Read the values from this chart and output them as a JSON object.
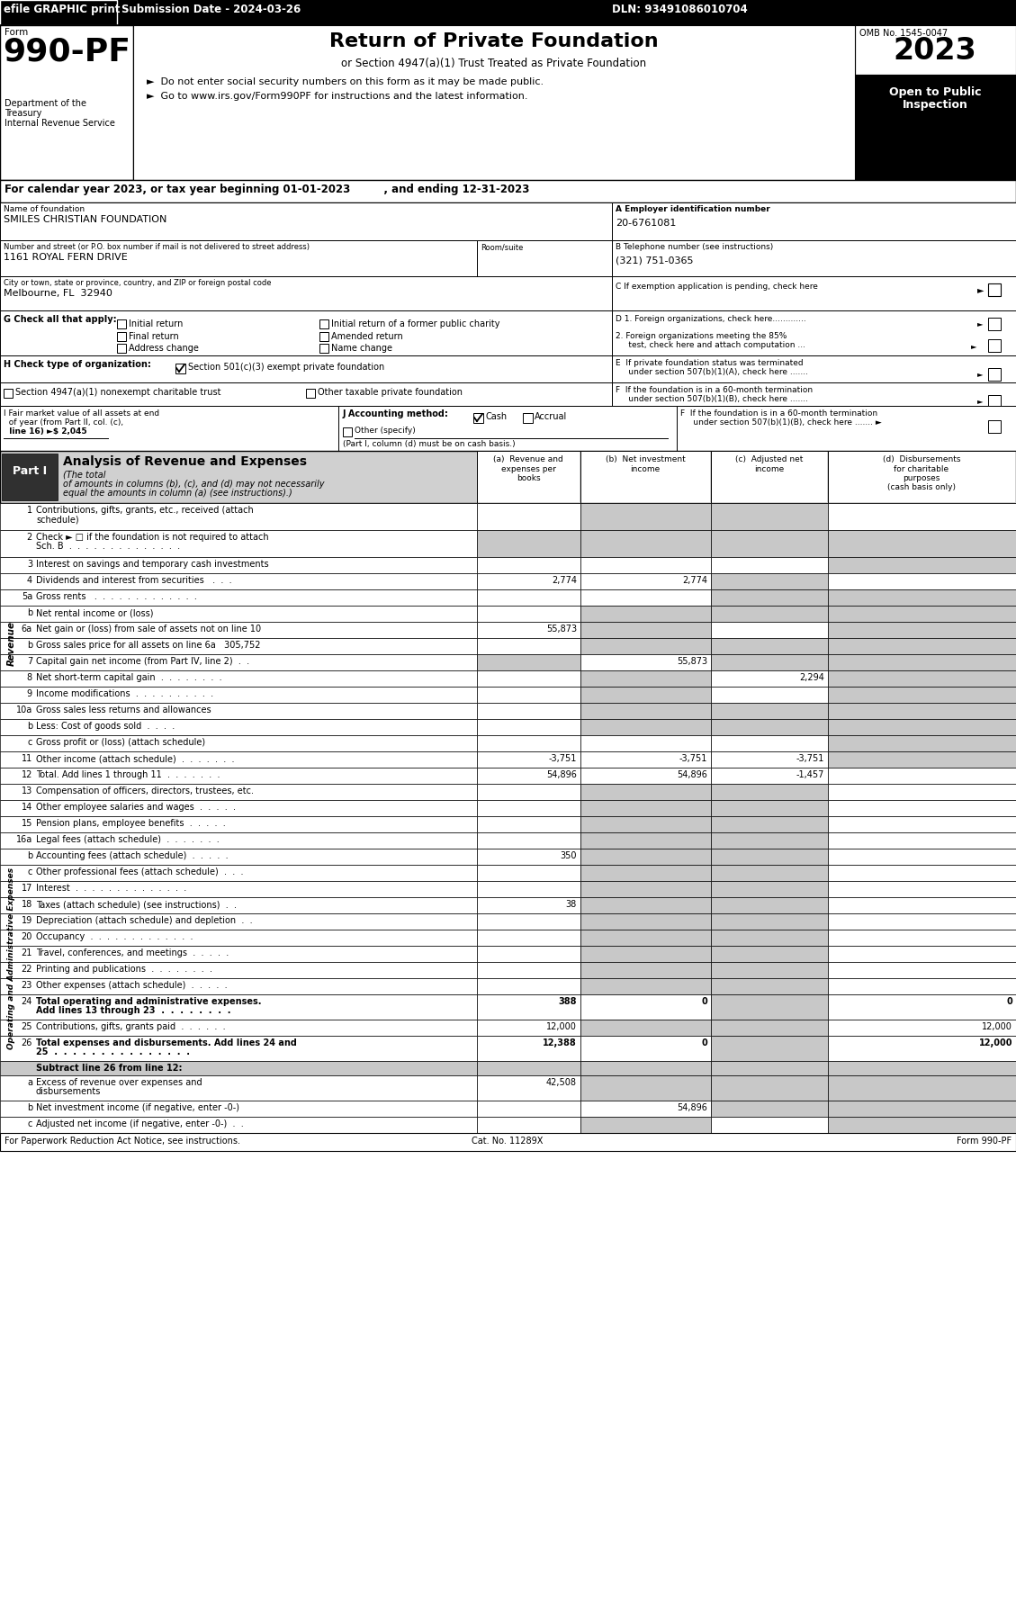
{
  "page_width": 11.29,
  "page_height": 17.98,
  "dpi": 100,
  "bg_color": "#ffffff",
  "black": "#000000",
  "light_gray": "#c8c8c8",
  "top_bar": {
    "efile": "efile GRAPHIC print",
    "submission": "Submission Date - 2024-03-26",
    "dln": "DLN: 93491086010704"
  },
  "form_header": {
    "form_number": "990-PF",
    "dept1": "Department of the",
    "dept2": "Treasury",
    "dept3": "Internal Revenue Service",
    "title": "Return of Private Foundation",
    "subtitle": "or Section 4947(a)(1) Trust Treated as Private Foundation",
    "bullet1": "►  Do not enter social security numbers on this form as it may be made public.",
    "bullet2": "►  Go to www.irs.gov/Form990PF for instructions and the latest information.",
    "omb": "OMB No. 1545-0047",
    "year": "2023",
    "open1": "Open to Public",
    "open2": "Inspection"
  },
  "calendar_line": "For calendar year 2023, or tax year beginning 01-01-2023         , and ending 12-31-2023",
  "footer": {
    "left": "For Paperwork Reduction Act Notice, see instructions.",
    "center": "Cat. No. 11289X",
    "right": "Form 990-PF"
  }
}
